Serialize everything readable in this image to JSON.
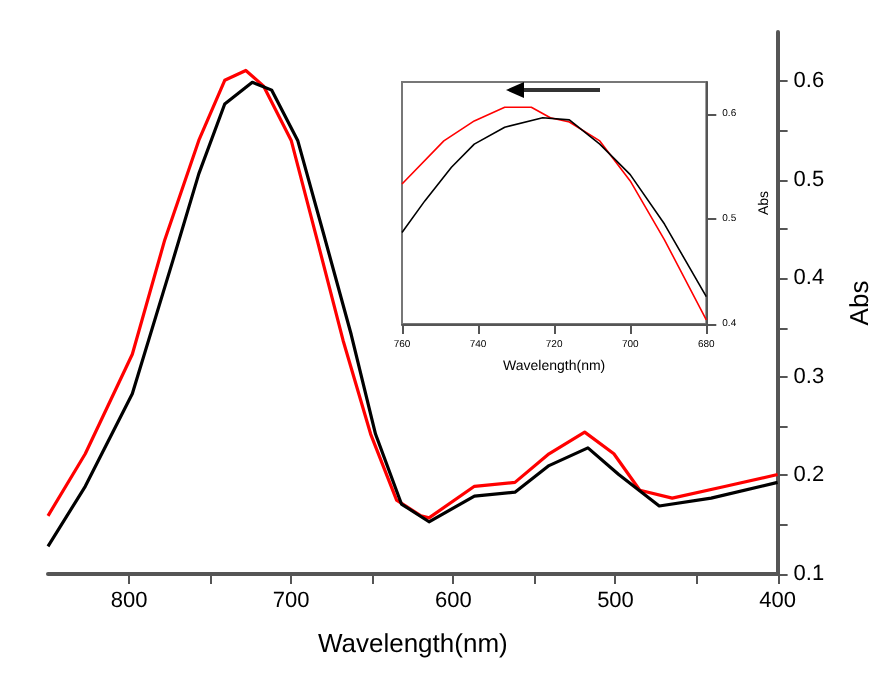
{
  "chart_data": [
    {
      "type": "line",
      "xlabel": "Wavelength(nm)",
      "ylabel": "Abs",
      "xlim": [
        850,
        400
      ],
      "ylim": [
        0.1,
        0.65
      ],
      "xticks": [
        800,
        {
          "value": 750,
          "label": null
        },
        700,
        {
          "value": 650,
          "label": null
        },
        600,
        {
          "value": 550,
          "label": null
        },
        500,
        {
          "value": 450,
          "label": null
        },
        400
      ],
      "yticks": [
        0.1,
        {
          "value": 0.15,
          "label": null
        },
        0.2,
        {
          "value": 0.25,
          "label": null
        },
        0.3,
        {
          "value": 0.35,
          "label": null
        },
        0.4,
        {
          "value": 0.45,
          "label": null
        },
        0.5,
        {
          "value": 0.55,
          "label": null
        },
        0.6
      ],
      "grid": false,
      "marker": "none",
      "line_style": "solid",
      "series": [
        {
          "color": "#ff0000",
          "x": [
            850,
            827,
            798,
            778,
            757,
            741,
            728,
            717,
            700,
            684,
            668,
            651,
            635,
            620,
            615,
            587,
            562,
            541,
            519,
            501,
            485,
            465,
            432,
            400
          ],
          "values": [
            0.159,
            0.222,
            0.323,
            0.439,
            0.54,
            0.601,
            0.611,
            0.595,
            0.54,
            0.439,
            0.337,
            0.242,
            0.175,
            0.159,
            0.157,
            0.189,
            0.193,
            0.222,
            0.244,
            0.222,
            0.185,
            0.177,
            0.189,
            0.201
          ]
        },
        {
          "color": "#000000",
          "x": [
            850,
            827,
            798,
            773,
            757,
            741,
            724,
            712,
            696,
            680,
            663,
            648,
            632,
            615,
            587,
            562,
            541,
            517,
            498,
            473,
            441,
            400
          ],
          "values": [
            0.128,
            0.189,
            0.283,
            0.418,
            0.506,
            0.577,
            0.599,
            0.591,
            0.54,
            0.445,
            0.343,
            0.242,
            0.171,
            0.153,
            0.179,
            0.183,
            0.21,
            0.228,
            0.201,
            0.169,
            0.177,
            0.193
          ]
        }
      ]
    },
    {
      "type": "line",
      "xlabel": "Wavelength(nm)",
      "ylabel": "Abs",
      "xlim": [
        760,
        680
      ],
      "ylim": [
        0.4,
        0.63
      ],
      "xticks": [
        760,
        740,
        720,
        700,
        680
      ],
      "yticks": [
        0.4,
        0.5,
        0.6
      ],
      "grid": false,
      "marker": "none",
      "line_style": "solid",
      "series": [
        {
          "color": "#ff0000",
          "x": [
            760,
            749,
            741,
            733,
            726,
            721,
            716,
            708,
            700,
            691,
            680
          ],
          "values": [
            0.533,
            0.574,
            0.593,
            0.606,
            0.606,
            0.596,
            0.592,
            0.574,
            0.536,
            0.48,
            0.404
          ]
        },
        {
          "color": "#000000",
          "x": [
            760,
            754,
            747,
            741,
            733,
            723,
            716,
            708,
            700,
            691,
            680
          ],
          "values": [
            0.487,
            0.517,
            0.549,
            0.571,
            0.587,
            0.596,
            0.594,
            0.571,
            0.542,
            0.495,
            0.426
          ]
        }
      ]
    }
  ]
}
